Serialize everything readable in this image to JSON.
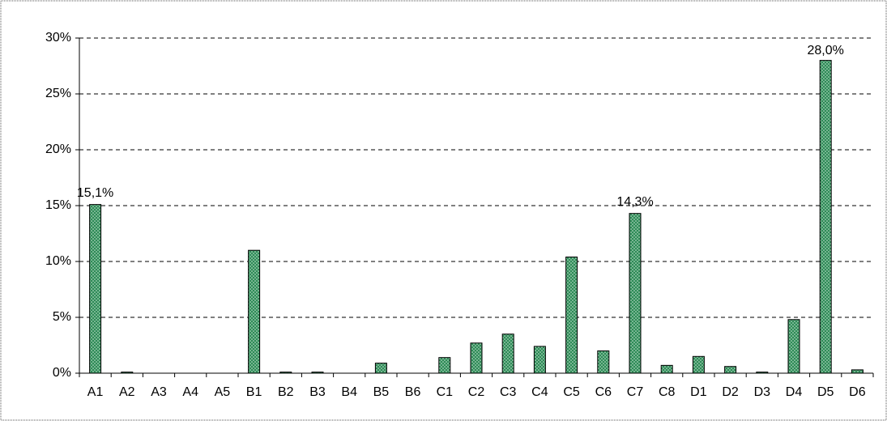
{
  "chart_data": {
    "type": "bar",
    "categories": [
      "A1",
      "A2",
      "A3",
      "A4",
      "A5",
      "B1",
      "B2",
      "B3",
      "B4",
      "B5",
      "B6",
      "C1",
      "C2",
      "C3",
      "C4",
      "C5",
      "C6",
      "C7",
      "C8",
      "D1",
      "D2",
      "D3",
      "D4",
      "D5",
      "D6"
    ],
    "values": [
      15.1,
      0.1,
      0,
      0,
      0,
      11.0,
      0.1,
      0.1,
      0,
      0.9,
      0,
      1.4,
      2.7,
      3.5,
      2.4,
      10.4,
      2.0,
      14.3,
      0.7,
      1.5,
      0.6,
      0.1,
      4.8,
      28.0,
      0.3
    ],
    "value_labels": [
      "15,1%",
      null,
      null,
      null,
      null,
      null,
      null,
      null,
      null,
      null,
      null,
      null,
      null,
      null,
      null,
      null,
      null,
      "14,3%",
      null,
      null,
      null,
      null,
      null,
      "28,0%",
      null
    ],
    "color": "#2e8b57",
    "ylim": [
      0,
      30
    ],
    "yticks": [
      {
        "value": 0,
        "label": "0%"
      },
      {
        "value": 5,
        "label": "5%"
      },
      {
        "value": 10,
        "label": "10%"
      },
      {
        "value": 15,
        "label": "15%"
      },
      {
        "value": 20,
        "label": "20%"
      },
      {
        "value": 25,
        "label": "25%"
      },
      {
        "value": 30,
        "label": "30%"
      }
    ],
    "grid": true
  }
}
